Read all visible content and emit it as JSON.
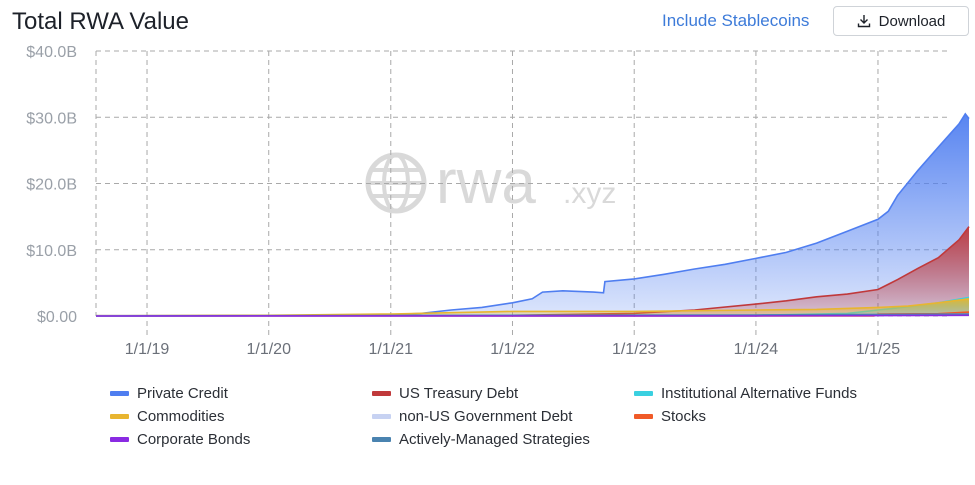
{
  "header": {
    "title": "Total RWA Value",
    "include_link": "Include Stablecoins",
    "download_label": "Download",
    "download_icon": "download-icon"
  },
  "watermark": {
    "icon": "globe-icon",
    "text_main": "rwa",
    "text_suffix": ".xyz"
  },
  "colors": {
    "private_credit": "#4f7ef0",
    "us_treasury": "#c0393b",
    "inst_alt_funds": "#3ad0e0",
    "commodities": "#e8b530",
    "non_us_gov": "#c7d2f2",
    "stocks": "#f05a28",
    "corporate_bonds": "#8a2be2",
    "active_managed": "#4a83b0",
    "link": "#3d7bd9",
    "grid": "#a9a9a9"
  },
  "legend": [
    {
      "key": "private_credit",
      "label": "Private Credit"
    },
    {
      "key": "us_treasury",
      "label": "US Treasury Debt"
    },
    {
      "key": "inst_alt_funds",
      "label": "Institutional Alternative Funds"
    },
    {
      "key": "commodities",
      "label": "Commodities"
    },
    {
      "key": "non_us_gov",
      "label": "non-US Government Debt"
    },
    {
      "key": "stocks",
      "label": "Stocks"
    },
    {
      "key": "corporate_bonds",
      "label": "Corporate Bonds"
    },
    {
      "key": "active_managed",
      "label": "Actively-Managed Strategies"
    }
  ],
  "chart_data": {
    "type": "area",
    "title": "Total RWA Value",
    "ylim": [
      0,
      40
    ],
    "y_unit": "B USD",
    "yticks": [
      {
        "value": 0,
        "label": "$0.00"
      },
      {
        "value": 10,
        "label": "$10.0B"
      },
      {
        "value": 20,
        "label": "$20.0B"
      },
      {
        "value": 30,
        "label": "$30.0B"
      },
      {
        "value": 40,
        "label": "$40.0B"
      }
    ],
    "xlim": [
      "2018-08-01",
      "2025-10-01"
    ],
    "xticks": [
      {
        "value": "2019-01-01",
        "label": "1/1/19"
      },
      {
        "value": "2020-01-01",
        "label": "1/1/20"
      },
      {
        "value": "2021-01-01",
        "label": "1/1/21"
      },
      {
        "value": "2022-01-01",
        "label": "1/1/22"
      },
      {
        "value": "2023-01-01",
        "label": "1/1/23"
      },
      {
        "value": "2024-01-01",
        "label": "1/1/24"
      },
      {
        "value": "2025-01-01",
        "label": "1/1/25"
      }
    ],
    "grid": true,
    "legend_position": "bottom",
    "series": [
      {
        "key": "private_credit",
        "name": "Private Credit",
        "points": [
          [
            "2018-08-01",
            0.05
          ],
          [
            "2020-06-01",
            0.1
          ],
          [
            "2021-01-01",
            0.2
          ],
          [
            "2021-04-01",
            0.4
          ],
          [
            "2021-07-01",
            0.9
          ],
          [
            "2021-10-01",
            1.3
          ],
          [
            "2022-01-01",
            2.0
          ],
          [
            "2022-03-01",
            2.6
          ],
          [
            "2022-04-01",
            3.6
          ],
          [
            "2022-06-01",
            3.8
          ],
          [
            "2022-09-01",
            3.6
          ],
          [
            "2022-10-01",
            3.5
          ],
          [
            "2022-10-05",
            5.2
          ],
          [
            "2023-01-01",
            5.6
          ],
          [
            "2023-04-01",
            6.3
          ],
          [
            "2023-07-01",
            7.1
          ],
          [
            "2023-10-01",
            7.8
          ],
          [
            "2024-01-01",
            8.7
          ],
          [
            "2024-04-01",
            9.6
          ],
          [
            "2024-07-01",
            11.0
          ],
          [
            "2024-10-01",
            12.8
          ],
          [
            "2025-01-01",
            14.6
          ],
          [
            "2025-02-01",
            15.8
          ],
          [
            "2025-03-01",
            18.2
          ],
          [
            "2025-05-01",
            22.0
          ],
          [
            "2025-07-01",
            25.5
          ],
          [
            "2025-09-01",
            29.0
          ],
          [
            "2025-09-20",
            30.5
          ],
          [
            "2025-10-01",
            29.8
          ]
        ]
      },
      {
        "key": "us_treasury",
        "name": "US Treasury Debt",
        "points": [
          [
            "2018-08-01",
            0.0
          ],
          [
            "2022-01-01",
            0.1
          ],
          [
            "2023-01-01",
            0.4
          ],
          [
            "2023-07-01",
            0.9
          ],
          [
            "2024-01-01",
            1.8
          ],
          [
            "2024-04-01",
            2.3
          ],
          [
            "2024-07-01",
            2.9
          ],
          [
            "2024-10-01",
            3.3
          ],
          [
            "2025-01-01",
            4.0
          ],
          [
            "2025-03-01",
            5.5
          ],
          [
            "2025-05-01",
            7.2
          ],
          [
            "2025-07-01",
            8.8
          ],
          [
            "2025-09-01",
            11.5
          ],
          [
            "2025-10-01",
            13.5
          ]
        ]
      },
      {
        "key": "inst_alt_funds",
        "name": "Institutional Alternative Funds",
        "points": [
          [
            "2018-08-01",
            0.0
          ],
          [
            "2024-01-01",
            0.1
          ],
          [
            "2024-10-01",
            0.4
          ],
          [
            "2025-01-01",
            0.9
          ],
          [
            "2025-04-01",
            1.4
          ],
          [
            "2025-07-01",
            2.0
          ],
          [
            "2025-10-01",
            2.8
          ]
        ]
      },
      {
        "key": "commodities",
        "name": "Commodities",
        "points": [
          [
            "2018-08-01",
            0.05
          ],
          [
            "2020-01-01",
            0.1
          ],
          [
            "2021-01-01",
            0.3
          ],
          [
            "2021-07-01",
            0.5
          ],
          [
            "2022-01-01",
            0.7
          ],
          [
            "2023-01-01",
            0.7
          ],
          [
            "2024-01-01",
            0.9
          ],
          [
            "2024-07-01",
            1.0
          ],
          [
            "2025-01-01",
            1.3
          ],
          [
            "2025-04-01",
            1.5
          ],
          [
            "2025-07-01",
            2.0
          ],
          [
            "2025-10-01",
            2.6
          ]
        ]
      },
      {
        "key": "non_us_gov",
        "name": "non-US Government Debt",
        "points": [
          [
            "2018-08-01",
            0.0
          ],
          [
            "2022-01-01",
            0.05
          ],
          [
            "2024-01-01",
            0.1
          ],
          [
            "2025-01-01",
            0.2
          ],
          [
            "2025-10-01",
            0.3
          ]
        ]
      },
      {
        "key": "stocks",
        "name": "Stocks",
        "points": [
          [
            "2018-08-01",
            0.0
          ],
          [
            "2024-12-20",
            0.0
          ],
          [
            "2025-01-01",
            0.3
          ],
          [
            "2025-07-01",
            0.35
          ],
          [
            "2025-10-01",
            0.6
          ]
        ]
      },
      {
        "key": "corporate_bonds",
        "name": "Corporate Bonds",
        "points": [
          [
            "2018-08-01",
            0.0
          ],
          [
            "2024-01-01",
            0.02
          ],
          [
            "2025-10-01",
            0.1
          ]
        ]
      },
      {
        "key": "active_managed",
        "name": "Actively-Managed Strategies",
        "points": [
          [
            "2018-08-01",
            0.0
          ],
          [
            "2022-01-01",
            0.1
          ],
          [
            "2024-01-01",
            0.15
          ],
          [
            "2025-10-01",
            0.3
          ]
        ]
      }
    ]
  }
}
